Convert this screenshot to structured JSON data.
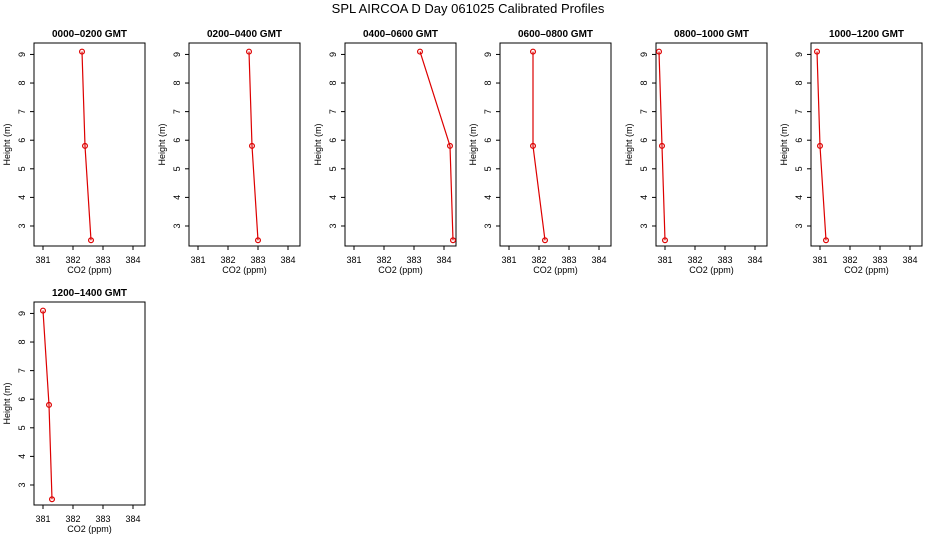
{
  "title": "SPL AIRCOA D  Day 061025  Calibrated Profiles",
  "chart_data": [
    {
      "type": "line",
      "title": "0000–0200 GMT",
      "xlabel": "CO2 (ppm)",
      "ylabel": "Height (m)",
      "xlim": [
        380.7,
        384.4
      ],
      "ylim": [
        2.3,
        9.4
      ],
      "xticks": [
        381,
        382,
        383,
        384
      ],
      "yticks": [
        3,
        4,
        5,
        6,
        7,
        8,
        9
      ],
      "x": [
        382.3,
        382.4,
        382.6
      ],
      "y": [
        9.1,
        5.8,
        2.5
      ],
      "color": "#dd0000"
    },
    {
      "type": "line",
      "title": "0200–0400 GMT",
      "xlabel": "CO2 (ppm)",
      "ylabel": "Height (m)",
      "xlim": [
        380.7,
        384.4
      ],
      "ylim": [
        2.3,
        9.4
      ],
      "xticks": [
        381,
        382,
        383,
        384
      ],
      "yticks": [
        3,
        4,
        5,
        6,
        7,
        8,
        9
      ],
      "x": [
        382.7,
        382.8,
        383.0
      ],
      "y": [
        9.1,
        5.8,
        2.5
      ],
      "color": "#dd0000"
    },
    {
      "type": "line",
      "title": "0400–0600 GMT",
      "xlabel": "CO2 (ppm)",
      "ylabel": "Height (m)",
      "xlim": [
        380.7,
        384.4
      ],
      "ylim": [
        2.3,
        9.4
      ],
      "xticks": [
        381,
        382,
        383,
        384
      ],
      "yticks": [
        3,
        4,
        5,
        6,
        7,
        8,
        9
      ],
      "x": [
        383.2,
        384.2,
        384.3
      ],
      "y": [
        9.1,
        5.8,
        2.5
      ],
      "color": "#dd0000"
    },
    {
      "type": "line",
      "title": "0600–0800 GMT",
      "xlabel": "CO2 (ppm)",
      "ylabel": "Height (m)",
      "xlim": [
        380.7,
        384.4
      ],
      "ylim": [
        2.3,
        9.4
      ],
      "xticks": [
        381,
        382,
        383,
        384
      ],
      "yticks": [
        3,
        4,
        5,
        6,
        7,
        8,
        9
      ],
      "x": [
        381.8,
        381.8,
        382.2
      ],
      "y": [
        9.1,
        5.8,
        2.5
      ],
      "color": "#dd0000"
    },
    {
      "type": "line",
      "title": "0800–1000 GMT",
      "xlabel": "CO2 (ppm)",
      "ylabel": "Height (m)",
      "xlim": [
        380.7,
        384.4
      ],
      "ylim": [
        2.3,
        9.4
      ],
      "xticks": [
        381,
        382,
        383,
        384
      ],
      "yticks": [
        3,
        4,
        5,
        6,
        7,
        8,
        9
      ],
      "x": [
        380.8,
        380.9,
        381.0
      ],
      "y": [
        9.1,
        5.8,
        2.5
      ],
      "color": "#dd0000"
    },
    {
      "type": "line",
      "title": "1000–1200 GMT",
      "xlabel": "CO2 (ppm)",
      "ylabel": "Height (m)",
      "xlim": [
        380.7,
        384.4
      ],
      "ylim": [
        2.3,
        9.4
      ],
      "xticks": [
        381,
        382,
        383,
        384
      ],
      "yticks": [
        3,
        4,
        5,
        6,
        7,
        8,
        9
      ],
      "x": [
        380.9,
        381.0,
        381.2
      ],
      "y": [
        9.1,
        5.8,
        2.5
      ],
      "color": "#dd0000"
    },
    {
      "type": "line",
      "title": "1200–1400 GMT",
      "xlabel": "CO2 (ppm)",
      "ylabel": "Height (m)",
      "xlim": [
        380.7,
        384.4
      ],
      "ylim": [
        2.3,
        9.4
      ],
      "xticks": [
        381,
        382,
        383,
        384
      ],
      "yticks": [
        3,
        4,
        5,
        6,
        7,
        8,
        9
      ],
      "x": [
        381.0,
        381.2,
        381.3
      ],
      "y": [
        9.1,
        5.8,
        2.5
      ],
      "color": "#dd0000"
    }
  ]
}
